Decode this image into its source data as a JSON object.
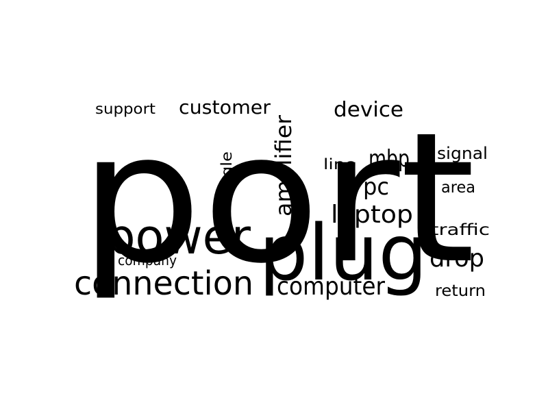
{
  "word_cloud": {
    "text_color": "#000000",
    "background_color": "#ffffff",
    "words": [
      {
        "text": "port",
        "weight": 1.0,
        "orientation": "horizontal"
      },
      {
        "text": "plug",
        "weight": 0.52,
        "orientation": "horizontal"
      },
      {
        "text": "power",
        "weight": 0.38,
        "orientation": "horizontal"
      },
      {
        "text": "connection",
        "weight": 0.3,
        "orientation": "horizontal"
      },
      {
        "text": "computer",
        "weight": 0.23,
        "orientation": "horizontal"
      },
      {
        "text": "laptop",
        "weight": 0.22,
        "orientation": "horizontal"
      },
      {
        "text": "drop",
        "weight": 0.22,
        "orientation": "horizontal"
      },
      {
        "text": "amplifier",
        "weight": 0.2,
        "orientation": "vertical"
      },
      {
        "text": "pc",
        "weight": 0.2,
        "orientation": "horizontal"
      },
      {
        "text": "mbp",
        "weight": 0.2,
        "orientation": "horizontal"
      },
      {
        "text": "device",
        "weight": 0.19,
        "orientation": "horizontal"
      },
      {
        "text": "customer",
        "weight": 0.18,
        "orientation": "horizontal"
      },
      {
        "text": "signal",
        "weight": 0.14,
        "orientation": "horizontal"
      },
      {
        "text": "traffic",
        "weight": 0.14,
        "orientation": "horizontal"
      },
      {
        "text": "return",
        "weight": 0.14,
        "orientation": "horizontal"
      },
      {
        "text": "area",
        "weight": 0.14,
        "orientation": "horizontal"
      },
      {
        "text": "support",
        "weight": 0.13,
        "orientation": "horizontal"
      },
      {
        "text": "single",
        "weight": 0.13,
        "orientation": "vertical"
      },
      {
        "text": "company",
        "weight": 0.12,
        "orientation": "horizontal"
      },
      {
        "text": "line",
        "weight": 0.12,
        "orientation": "horizontal"
      }
    ]
  }
}
